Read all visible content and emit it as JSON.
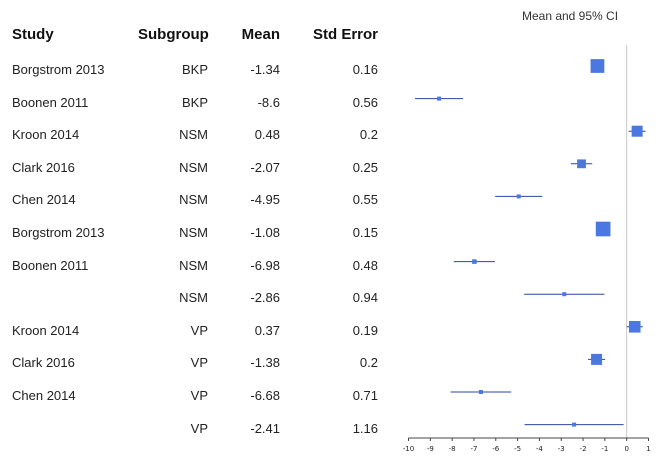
{
  "headers": {
    "study": "Study",
    "subgroup": "Subgroup",
    "mean": "Mean",
    "std_error": "Std Error"
  },
  "rows": [
    {
      "study": "Borgstrom 2013",
      "subgroup": "BKP",
      "mean": "-1.34",
      "se": "0.16"
    },
    {
      "study": "Boonen 2011",
      "subgroup": "BKP",
      "mean": "-8.6",
      "se": "0.56"
    },
    {
      "study": "Kroon 2014",
      "subgroup": "NSM",
      "mean": "0.48",
      "se": "0.2"
    },
    {
      "study": "Clark 2016",
      "subgroup": "NSM",
      "mean": "-2.07",
      "se": "0.25"
    },
    {
      "study": "Chen 2014",
      "subgroup": "NSM",
      "mean": "-4.95",
      "se": "0.55"
    },
    {
      "study": "Borgstrom 2013",
      "subgroup": "NSM",
      "mean": "-1.08",
      "se": "0.15"
    },
    {
      "study": "Boonen 2011",
      "subgroup": "NSM",
      "mean": "-6.98",
      "se": "0.48"
    },
    {
      "study": "",
      "subgroup": "NSM",
      "mean": "-2.86",
      "se": "0.94"
    },
    {
      "study": "Kroon 2014",
      "subgroup": "VP",
      "mean": "0.37",
      "se": "0.19"
    },
    {
      "study": "Clark 2016",
      "subgroup": "VP",
      "mean": "-1.38",
      "se": "0.2"
    },
    {
      "study": "Chen 2014",
      "subgroup": "VP",
      "mean": "-6.68",
      "se": "0.71"
    },
    {
      "study": "",
      "subgroup": "VP",
      "mean": "-2.41",
      "se": "1.16"
    }
  ],
  "chart_data": {
    "type": "scatter",
    "subtype": "forest",
    "title": "Mean and 95% CI",
    "xlim": [
      -10,
      1
    ],
    "ticks": [
      "-10",
      "-9",
      "-8",
      "-7",
      "-6",
      "-5",
      "-4",
      "-3",
      "-2",
      "-1",
      "0",
      "1"
    ],
    "reference_line": 0,
    "points": [
      {
        "mean": -1.34,
        "lower": -1.65,
        "upper": -1.03
      },
      {
        "mean": -8.6,
        "lower": -9.7,
        "upper": -7.5
      },
      {
        "mean": 0.48,
        "lower": 0.09,
        "upper": 0.87
      },
      {
        "mean": -2.07,
        "lower": -2.56,
        "upper": -1.58
      },
      {
        "mean": -4.95,
        "lower": -6.03,
        "upper": -3.87
      },
      {
        "mean": -1.08,
        "lower": -1.37,
        "upper": -0.79
      },
      {
        "mean": -6.98,
        "lower": -7.92,
        "upper": -6.04
      },
      {
        "mean": -2.86,
        "lower": -4.7,
        "upper": -1.02
      },
      {
        "mean": 0.37,
        "lower": 0.0,
        "upper": 0.74
      },
      {
        "mean": -1.38,
        "lower": -1.77,
        "upper": -0.99
      },
      {
        "mean": -6.68,
        "lower": -8.07,
        "upper": -5.29
      },
      {
        "mean": -2.41,
        "lower": -4.68,
        "upper": -0.14
      }
    ],
    "marker_color": "#4a78e0",
    "line_color": "#2b45a6"
  }
}
